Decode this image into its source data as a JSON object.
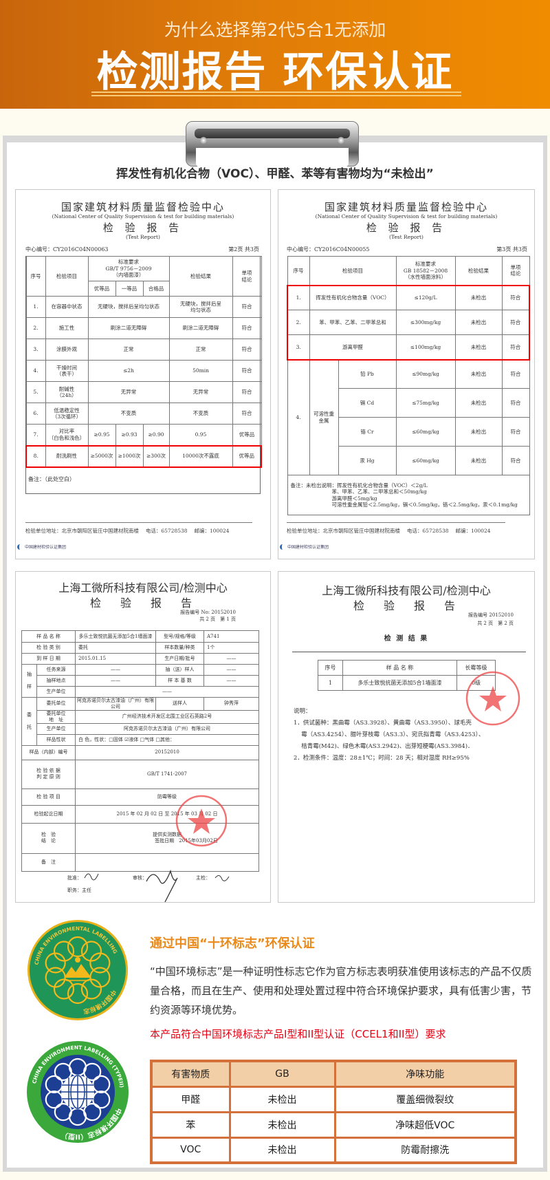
{
  "header": {
    "subtitle": "为什么选择第2代5合1无添加",
    "title": "检测报告 环保认证",
    "colors": {
      "gradient_start": "#c8650c",
      "gradient_end": "#f08c00"
    }
  },
  "heading": "挥发性有机化合物（VOC）、甲醛、苯等有害物均为“未检出”",
  "doc1": {
    "org": "国家建筑材料质量监督检验中心",
    "org_en": "(National Center of Quality Supervision & test for building materials)",
    "report": "检 验 报 告",
    "report_en": "(Test Report)",
    "center_no": "中心编号：CY2016C04N00063",
    "page": "第2页 共3页",
    "table": {
      "rows": [
        [
          {
            "t": "序号",
            "r": 2
          },
          {
            "t": "检验项目",
            "r": 2
          },
          {
            "t": "标准要求\nGB/T 9756－2009\n（内墙面漆）",
            "c": 3
          },
          {
            "t": "检验结果",
            "r": 2
          },
          {
            "t": "单项\n结论",
            "r": 2
          }
        ],
        [
          "优等品",
          "一等品",
          "合格品"
        ],
        [
          "1.",
          "在容器中状态",
          {
            "t": "无硬块，搅拌后呈均匀状态",
            "c": 3
          },
          "无硬块，搅拌后呈\n均匀状态",
          "符合"
        ],
        [
          "2.",
          "施工性",
          {
            "t": "刷涂二道无障碍",
            "c": 3
          },
          "刷涂二道无障碍",
          "符合"
        ],
        [
          "3.",
          "涂膜外观",
          {
            "t": "正常",
            "c": 3
          },
          "正常",
          "符合"
        ],
        [
          "4.",
          "干燥时间\n（表干）",
          {
            "t": "≤2h",
            "c": 3
          },
          "50min",
          "符合"
        ],
        [
          "5.",
          "耐碱性\n（24h）",
          {
            "t": "无异常",
            "c": 3
          },
          "无异常",
          "符合"
        ],
        [
          "6.",
          "低温稳定性\n（3次循环）",
          {
            "t": "不变质",
            "c": 3
          },
          "不变质",
          "符合"
        ],
        [
          "7.",
          "对比率\n（白色和浅色）",
          "≥0.95",
          "≥0.93",
          "≥0.90",
          "0.95",
          "优等品"
        ],
        [
          "8.",
          "耐洗刷性",
          "≥5000次",
          "≥1000次",
          "≥300次",
          "10000次不露底",
          "优等品"
        ]
      ],
      "highlight": [
        [
          9,
          9
        ]
      ]
    },
    "remark": "备注：（此处空白）",
    "footer": "检验单位地址：北京市朝阳区管庄中国建材院南楼　 电话：65728538　 邮编：100024",
    "footer_logo": "中国建材检验认证集团"
  },
  "doc2": {
    "org": "国家建筑材料质量监督检验中心",
    "org_en": "(National Center of Quality Supervision & test for building materials)",
    "report": "检 验 报 告",
    "report_en": "(Test Report)",
    "center_no": "中心编号：CY2016C04N00055",
    "page": "第3页 共3页",
    "table": {
      "rows": [
        [
          "序号",
          {
            "t": "检验项目",
            "c": 2
          },
          "标准要求\nGB 18582－2008\n（水性墙面涂料）",
          "检验结果",
          "单项\n结论"
        ],
        [
          "1.",
          {
            "t": "挥发性有机化合物含量（VOC）",
            "c": 2
          },
          "≤120g/L",
          "未检出",
          "符合"
        ],
        [
          "2.",
          {
            "t": "苯、甲苯、乙苯、二甲苯总和",
            "c": 2
          },
          "≤300mg/kg",
          "未检出",
          "符合"
        ],
        [
          "3.",
          {
            "t": "游离甲醛",
            "c": 2
          },
          "≤100mg/kg",
          "未检出",
          "符合"
        ],
        [
          {
            "t": "4.",
            "r": 4
          },
          {
            "t": "可溶性重\n金属",
            "r": 4
          },
          "铅 Pb",
          "≤90mg/kg",
          "未检出",
          "符合"
        ],
        [
          "镉 Cd",
          "≤75mg/kg",
          "未检出",
          "符合"
        ],
        [
          "铬 Cr",
          "≤60mg/kg",
          "未检出",
          "符合"
        ],
        [
          "汞 Hg",
          "≤60mg/kg",
          "未检出",
          "符合"
        ],
        [
          {
            "t": "备注：未检出说明：挥发性有机化合物含量（VOC）＜2g/L\n　　　　　　　　苯、甲苯、乙苯、二甲苯总和＜50mg/kg\n　　　　　　　　游离甲醛＜5mg/kg\n　　　　　　　　可溶性重金属铅＜2.5mg/kg，镉＜0.5mg/kg，铬＜2.5mg/kg，汞＜0.1mg/kg",
            "c": 6,
            "l": true
          }
        ]
      ],
      "highlight": [
        [
          1,
          3
        ]
      ]
    },
    "footer": "检验单位地址：北京市朝阳区管庄中国建材院南楼　 电话：65728538　 邮编：100024",
    "footer_logo": "中国建材检验认证集团"
  },
  "doc3": {
    "org": "上海工微所科技有限公司/检测中心",
    "report": "检　验　报　告",
    "report_no": "报告编号 No: 20152010",
    "page": "共 2 页　第 1 页",
    "table": {
      "rows": [
        [
          {
            "t": "样 品 名 称",
            "c": 2
          },
          "多乐士致悦抗菌无添加5合1墙面漆",
          "型号/规格/等级",
          {
            "t": "A741",
            "l": true
          }
        ],
        [
          {
            "t": "检 验 类 别",
            "c": 2
          },
          {
            "t": "委托",
            "l": true
          },
          "样本数量/种类",
          {
            "t": "1个",
            "l": true
          }
        ],
        [
          {
            "t": "到 样 日 期",
            "c": 2
          },
          {
            "t": "2015.01.15",
            "l": true
          },
          "生产日期/批号",
          "——"
        ],
        [
          {
            "t": "抽\n\n样",
            "r": 3
          },
          "任务来源",
          "——",
          "抽（送）样人",
          "——"
        ],
        [
          "抽样地点",
          "——",
          "样 本 基 数",
          "——"
        ],
        [
          "生产单位",
          {
            "t": "——",
            "c": 3
          }
        ],
        [
          {
            "t": "委\n\n托",
            "r": 4
          },
          "委托单位",
          "阿克苏诺贝尔太古漆油（广州）有限公司",
          "送样人",
          "钟秀萍"
        ],
        [
          "委托单位\n地　址",
          {
            "t": "广州经济技术开发区北围工业区石英路2号",
            "c": 3
          }
        ],
        [
          "生产单位",
          {
            "t": "阿克苏诺贝尔太古漆油（广州）有限公司",
            "c": 3
          }
        ],
        [
          "样品性状",
          {
            "t": "白 色，性状：□固体 ☑液体 □气体 □其他：",
            "c": 3,
            "l": true
          }
        ],
        [
          {
            "t": "样品（内部）编号",
            "c": 2
          },
          {
            "t": "20152010",
            "c": 3
          }
        ],
        [
          {
            "t": "检 验 依 据\n判 定 原 则",
            "c": 2
          },
          {
            "t": "GB/T 1741-2007",
            "c": 3
          }
        ],
        [
          {
            "t": "检 验 项 目",
            "c": 2
          },
          {
            "t": "防霉等级",
            "c": 3
          }
        ],
        [
          {
            "t": "检验起讫日期",
            "c": 2
          },
          {
            "t": "2015 年 02 月 02 日 至 2015 年 03 月 02 日",
            "c": 3
          }
        ],
        [
          {
            "t": "检　验\n结　论",
            "c": 2
          },
          {
            "t": "提供实测数据\n　　　　　　　　签批日期　2015年03月02日",
            "c": 3
          }
        ],
        [
          {
            "t": "备　注",
            "c": 2
          },
          {
            "t": "",
            "c": 3
          }
        ]
      ]
    },
    "approve_label": "批准：",
    "position": "职务：主任",
    "review_label": "审核：",
    "inspector_label": "主检："
  },
  "doc4": {
    "org": "上海工微所科技有限公司/检测中心",
    "report": "检　验　报　告",
    "report_no": "报告编号 20152010",
    "page": "共 2 页　第 2 页",
    "section": "检 测 结 果",
    "table": {
      "rows": [
        [
          "序号",
          "样 品 名 称",
          "长霉等级"
        ],
        [
          "1",
          "多乐士致悦抗菌无添加5合1墙面漆",
          "0级"
        ]
      ]
    },
    "notes_title": "说明：",
    "notes": [
      "1．供试菌种：黑曲霉（AS3.3928）、黄曲霉（AS3.3950）、球毛壳",
      "　 霉（AS3.4254）、腊叶芽枝霉（AS3.3）、宛氏拟青霉（AS3.4253）、",
      "　 桔青霉(M42)、绿色木霉(AS3.2942)、出芽短梗霉(AS3.3984)．",
      "2．检测条件：温度：28±1℃；时间：28 天；相对湿度 RH≥95%"
    ]
  },
  "cert": {
    "title": "通过中国“十环标志”环保认证",
    "paragraph": "“中国环境标志”是一种证明性标志它作为官方标志表明获准使用该标志的产品不仅质量合格，而且在生产、使用和处理处置过程中符合环境保护要求，具有低害少害，节约资源等环境优势。",
    "claim": "本产品符合中国环境标志产品I型和II型认证（CCEL1和II型）要求",
    "logo1": {
      "top": "中国环境标志",
      "bottom": "CHINA ENVIRONMENTAL LABELLING"
    },
    "logo2": {
      "top": "中国环境标志（II型）",
      "bottom": "CHINA ENVIRONMENT LABELLING (TYPEII)"
    },
    "table": {
      "headers": [
        "有害物质",
        "GB",
        "净味功能"
      ],
      "rows": [
        [
          "甲醛",
          "未检出",
          "覆盖细微裂纹"
        ],
        [
          "苯",
          "未检出",
          "净味超低VOC"
        ],
        [
          "VOC",
          "未检出",
          "防霉耐擦洗"
        ]
      ]
    },
    "colors": {
      "title": "#e98a1a",
      "claim": "#e60012",
      "table_border": "#d4703a",
      "table_header": "#f3cfa8"
    }
  }
}
